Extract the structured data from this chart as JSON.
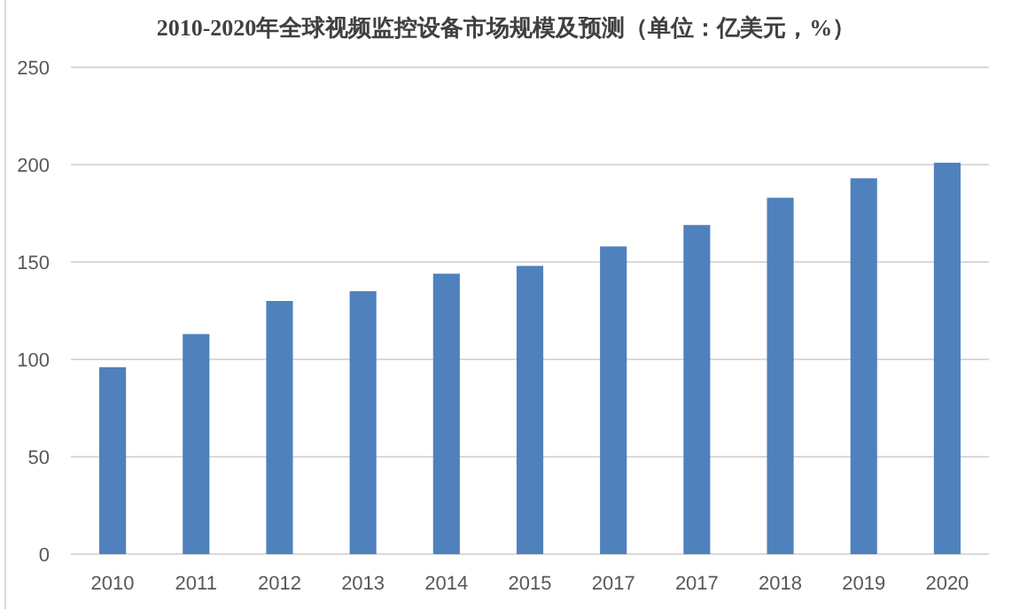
{
  "chart_data": {
    "type": "bar",
    "title": "2010-2020年全球视频监控设备市场规模及预测（单位：亿美元，%）",
    "categories": [
      "2010",
      "2011",
      "2012",
      "2013",
      "2014",
      "2015",
      "2017",
      "2017",
      "2018",
      "2019",
      "2020"
    ],
    "values": [
      96,
      113,
      130,
      135,
      144,
      148,
      158,
      169,
      183,
      193,
      201
    ],
    "color": "#4f81bd",
    "ylim": [
      0,
      250
    ],
    "yticks": [
      0,
      50,
      100,
      150,
      200,
      250
    ],
    "grid": "y"
  }
}
